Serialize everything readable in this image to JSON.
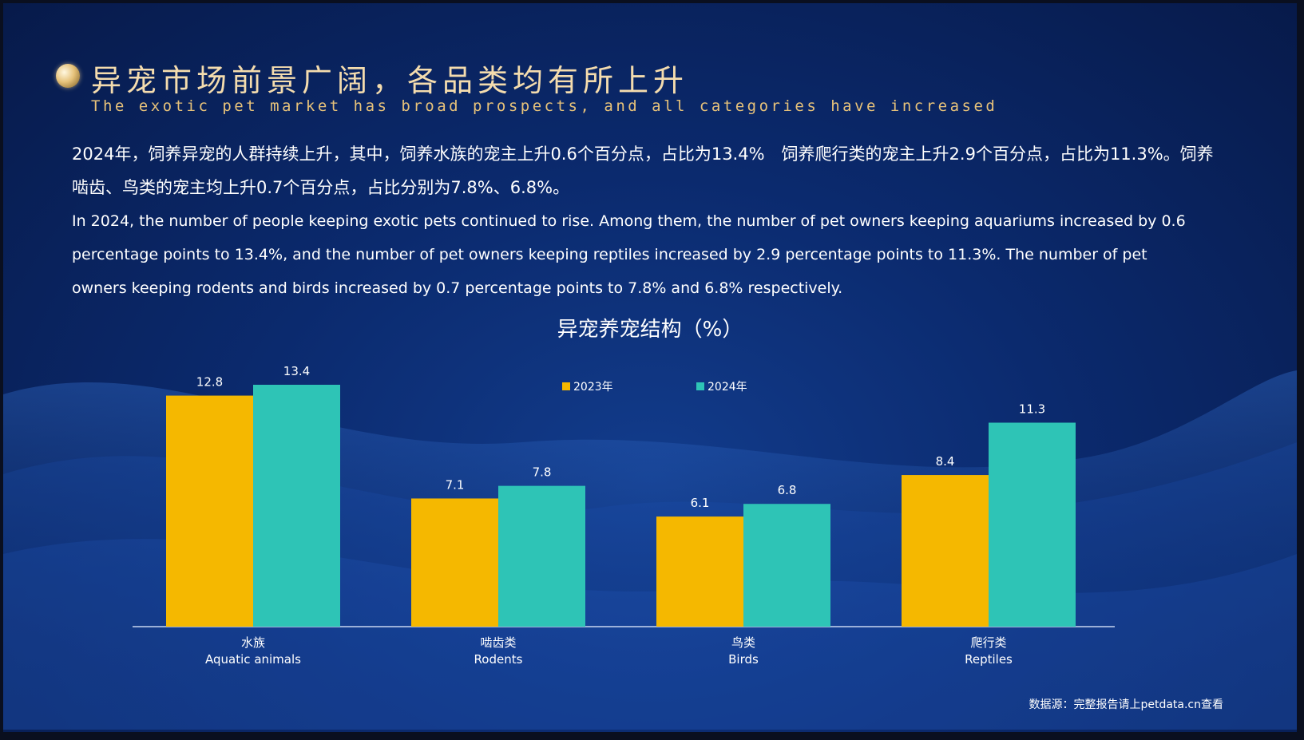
{
  "title_cn": "异宠市场前景广阔，各品类均有所上升",
  "title_en": "The exotic pet market has broad prospects, and all categories have increased",
  "paragraph_cn": "2024年，饲养异宠的人群持续上升，其中，饲养水族的宠主上升0.6个百分点，占比为13.4%　饲养爬行类的宠主上升2.9个百分点，占比为11.3%。饲养啮齿、鸟类的宠主均上升0.7个百分点，占比分别为7.8%、6.8%。",
  "paragraph_en": "In 2024, the number of people keeping exotic pets continued to rise. Among them, the number of pet owners keeping aquariums increased by 0.6 percentage points to 13.4%, and the number of pet owners keeping reptiles increased by 2.9 percentage points to 11.3%. The number of pet owners keeping rodents and birds increased by 0.7 percentage points to 7.8% and 6.8% respectively.",
  "source": "数据源：完整报告请上petdata.cn查看",
  "colors": {
    "series_2023": "#f5b800",
    "series_2024": "#2ec4b6"
  },
  "chart_data": {
    "type": "bar",
    "title": "异宠养宠结构（%）",
    "categories": [
      {
        "cn": "水族",
        "en": "Aquatic animals"
      },
      {
        "cn": "啮齿类",
        "en": "Rodents"
      },
      {
        "cn": "鸟类",
        "en": "Birds"
      },
      {
        "cn": "爬行类",
        "en": "Reptiles"
      }
    ],
    "series": [
      {
        "name": "2023年",
        "values": [
          12.8,
          7.1,
          6.1,
          8.4
        ]
      },
      {
        "name": "2024年",
        "values": [
          13.4,
          7.8,
          6.8,
          11.3
        ]
      }
    ],
    "ylim": [
      0,
      13.4
    ],
    "legend": "top-center",
    "grid": false
  }
}
